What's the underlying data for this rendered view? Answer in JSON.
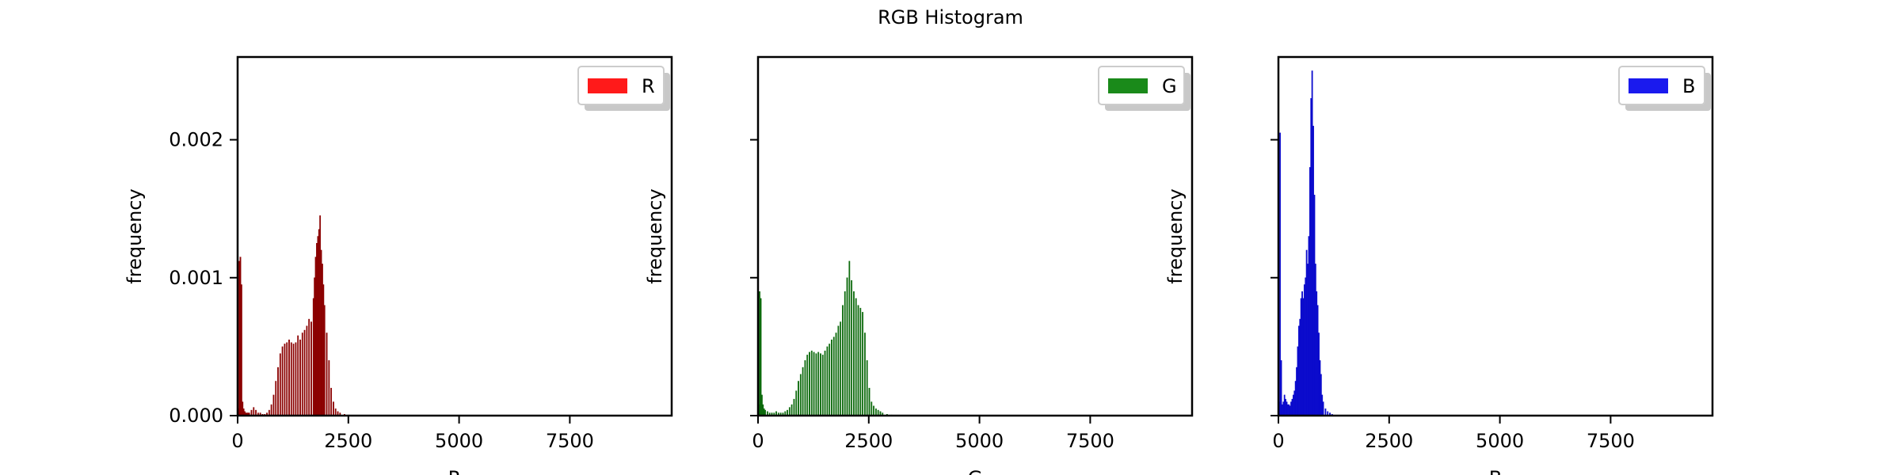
{
  "figure": {
    "title": "RGB Histogram"
  },
  "colors": {
    "R": "#ff1a1a",
    "G": "#1a8a1a",
    "B": "#1a1aee",
    "R_bar": "#8b0000",
    "G_bar": "#0c6a0c",
    "B_bar": "#0a0acc"
  },
  "chart_data": [
    {
      "type": "bar",
      "title": "",
      "xlabel": "R",
      "ylabel": "frequency",
      "xlim": [
        0,
        9800
      ],
      "ylim": [
        0,
        0.0026
      ],
      "xticks": [
        0,
        2500,
        5000,
        7500
      ],
      "xtick_labels": [
        "0",
        "2500",
        "5000",
        "7500"
      ],
      "yticks": [
        0,
        0.001,
        0.002
      ],
      "ytick_labels": [
        "0.000",
        "0.001",
        "0.002"
      ],
      "legend": {
        "label": "R",
        "placement": "top-right"
      },
      "series_color": "R_bar",
      "legend_color": "R",
      "bin_width": 25,
      "x": [
        0,
        25,
        50,
        75,
        100,
        125,
        150,
        175,
        200,
        225,
        250,
        300,
        350,
        400,
        450,
        500,
        550,
        600,
        650,
        700,
        750,
        800,
        850,
        900,
        950,
        1000,
        1050,
        1100,
        1150,
        1200,
        1250,
        1300,
        1350,
        1400,
        1450,
        1500,
        1550,
        1600,
        1650,
        1700,
        1725,
        1750,
        1775,
        1800,
        1825,
        1850,
        1875,
        1900,
        1925,
        1950,
        2000,
        2050,
        2100,
        2150,
        2200,
        2250,
        2300,
        2400,
        2500,
        2600
      ],
      "y": [
        5e-05,
        0.00112,
        0.00115,
        0.00095,
        0.0001,
        5e-05,
        3e-05,
        2e-05,
        2e-05,
        2e-05,
        2e-05,
        4e-05,
        6e-05,
        4e-05,
        2e-05,
        2e-05,
        1e-05,
        1e-05,
        2e-05,
        4e-05,
        8e-05,
        0.00015,
        0.00025,
        0.00035,
        0.00045,
        0.0005,
        0.00052,
        0.00053,
        0.00055,
        0.00053,
        0.00052,
        0.00053,
        0.00058,
        0.00055,
        0.0006,
        0.00062,
        0.00065,
        0.0007,
        0.00068,
        0.00085,
        0.001,
        0.00115,
        0.00125,
        0.0013,
        0.00135,
        0.00145,
        0.0012,
        0.0011,
        0.00095,
        0.0008,
        0.0006,
        0.0004,
        0.0002,
        0.0001,
        5e-05,
        3e-05,
        2e-05,
        1e-05,
        5e-06,
        3e-06
      ]
    },
    {
      "type": "bar",
      "title": "",
      "xlabel": "G",
      "ylabel": "frequency",
      "xlim": [
        0,
        9800
      ],
      "ylim": [
        0,
        0.0026
      ],
      "xticks": [
        0,
        2500,
        5000,
        7500
      ],
      "xtick_labels": [
        "0",
        "2500",
        "5000",
        "7500"
      ],
      "yticks": [
        0,
        0.001,
        0.002
      ],
      "ytick_labels": [
        "",
        "",
        ""
      ],
      "legend": {
        "label": "G",
        "placement": "top-right"
      },
      "series_color": "G_bar",
      "legend_color": "G",
      "bin_width": 25,
      "x": [
        0,
        25,
        50,
        75,
        100,
        125,
        150,
        200,
        250,
        300,
        350,
        400,
        450,
        500,
        550,
        600,
        650,
        700,
        750,
        800,
        850,
        900,
        950,
        1000,
        1050,
        1100,
        1150,
        1200,
        1250,
        1300,
        1350,
        1400,
        1450,
        1500,
        1550,
        1600,
        1650,
        1700,
        1750,
        1800,
        1850,
        1900,
        1950,
        2000,
        2050,
        2100,
        2150,
        2200,
        2250,
        2300,
        2350,
        2400,
        2450,
        2500,
        2550,
        2600,
        2650,
        2700,
        2750,
        2800,
        2900,
        3000
      ],
      "y": [
        8e-05,
        0.0009,
        0.00085,
        0.00015,
        8e-05,
        5e-05,
        4e-05,
        3e-05,
        2e-05,
        2e-05,
        2e-05,
        3e-05,
        2e-05,
        2e-05,
        2e-05,
        3e-05,
        4e-05,
        6e-05,
        8e-05,
        0.00012,
        0.00018,
        0.00025,
        0.0003,
        0.00035,
        0.0004,
        0.00044,
        0.00046,
        0.00047,
        0.00046,
        0.00045,
        0.00046,
        0.00045,
        0.00044,
        0.00047,
        0.0005,
        0.00052,
        0.00055,
        0.00057,
        0.0006,
        0.00065,
        0.00068,
        0.0008,
        0.0009,
        0.001,
        0.00112,
        0.00098,
        0.0009,
        0.00085,
        0.0008,
        0.00078,
        0.00075,
        0.0006,
        0.0004,
        0.0002,
        0.0001,
        7e-05,
        5e-05,
        4e-05,
        3e-05,
        2e-05,
        1e-05,
        5e-06
      ]
    },
    {
      "type": "bar",
      "title": "",
      "xlabel": "B",
      "ylabel": "frequency",
      "xlim": [
        0,
        9800
      ],
      "ylim": [
        0,
        0.0026
      ],
      "xticks": [
        0,
        2500,
        5000,
        7500
      ],
      "xtick_labels": [
        "0",
        "2500",
        "5000",
        "7500"
      ],
      "yticks": [
        0,
        0.001,
        0.002
      ],
      "ytick_labels": [
        "",
        "",
        ""
      ],
      "legend": {
        "label": "B",
        "placement": "top-right"
      },
      "series_color": "B_bar",
      "legend_color": "B",
      "bin_width": 25,
      "x": [
        0,
        25,
        50,
        75,
        100,
        125,
        150,
        175,
        200,
        225,
        250,
        275,
        300,
        325,
        350,
        375,
        400,
        425,
        450,
        475,
        500,
        525,
        550,
        575,
        600,
        625,
        650,
        675,
        700,
        725,
        750,
        775,
        800,
        825,
        850,
        875,
        900,
        925,
        950,
        975,
        1000,
        1050,
        1100,
        1150,
        1200
      ],
      "y": [
        0.0001,
        0.00205,
        0.0004,
        8e-05,
        0.0001,
        0.00015,
        0.00012,
        0.0001,
        8e-05,
        8e-05,
        7e-05,
        0.0001,
        0.00012,
        0.00015,
        0.00018,
        0.00025,
        0.00035,
        0.0005,
        0.00065,
        0.0007,
        0.00085,
        0.0009,
        0.00085,
        0.00095,
        0.001,
        0.0012,
        0.0011,
        0.0013,
        0.0018,
        0.0023,
        0.0025,
        0.0021,
        0.0016,
        0.0011,
        0.0009,
        0.0008,
        0.0006,
        0.0004,
        0.0003,
        0.00015,
        0.0001,
        5e-05,
        3e-05,
        2e-05,
        1e-05
      ]
    }
  ]
}
